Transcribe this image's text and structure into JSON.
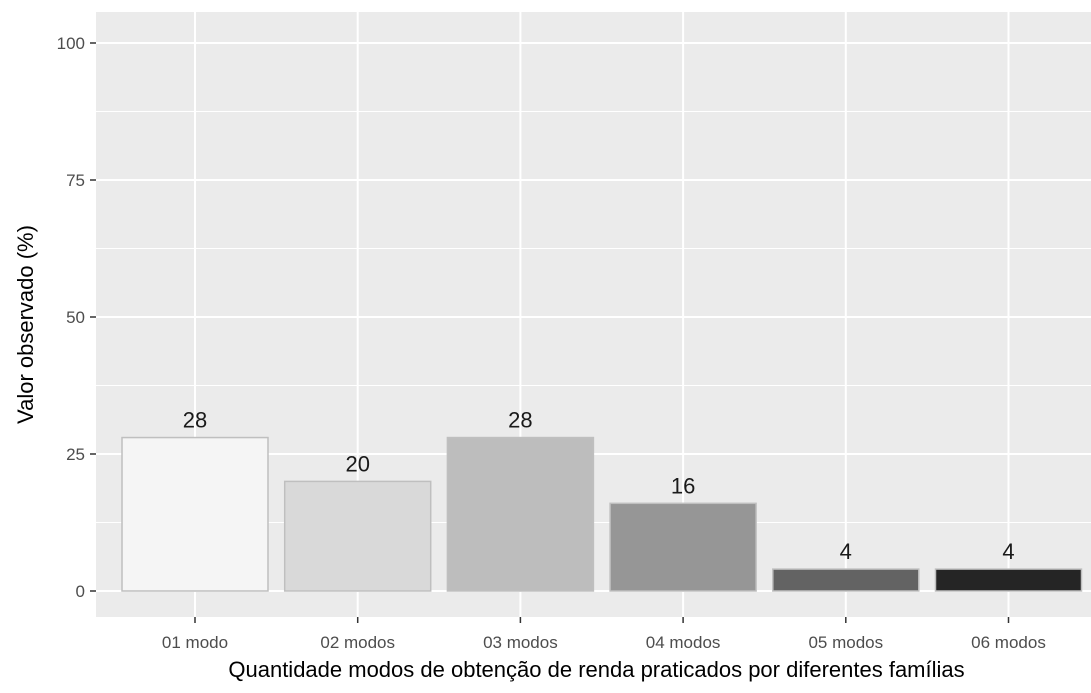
{
  "chart_data": {
    "type": "bar",
    "title": "",
    "xlabel": "Quantidade modos de obtenção de renda praticados por diferentes famílias",
    "ylabel": "Valor observado (%)",
    "categories": [
      "01 modo",
      "02 modos",
      "03 modos",
      "04 modos",
      "05 modos",
      "06 modos"
    ],
    "values": [
      28,
      20,
      28,
      16,
      4,
      4
    ],
    "data_labels": [
      "28",
      "20",
      "28",
      "16",
      "4",
      "4"
    ],
    "bar_colors": [
      "#f5f5f5",
      "#d9d9d9",
      "#bdbdbd",
      "#969696",
      "#636363",
      "#252525"
    ],
    "bar_border_color": "#bfbfbf",
    "ylim": [
      0,
      100
    ],
    "yticks": [
      0,
      25,
      50,
      75,
      100
    ],
    "ytick_labels": [
      "0",
      "25",
      "50",
      "75",
      "100"
    ],
    "grid": true,
    "legend": "none",
    "panel_background": "#ebebeb",
    "grid_color": "#ffffff"
  }
}
